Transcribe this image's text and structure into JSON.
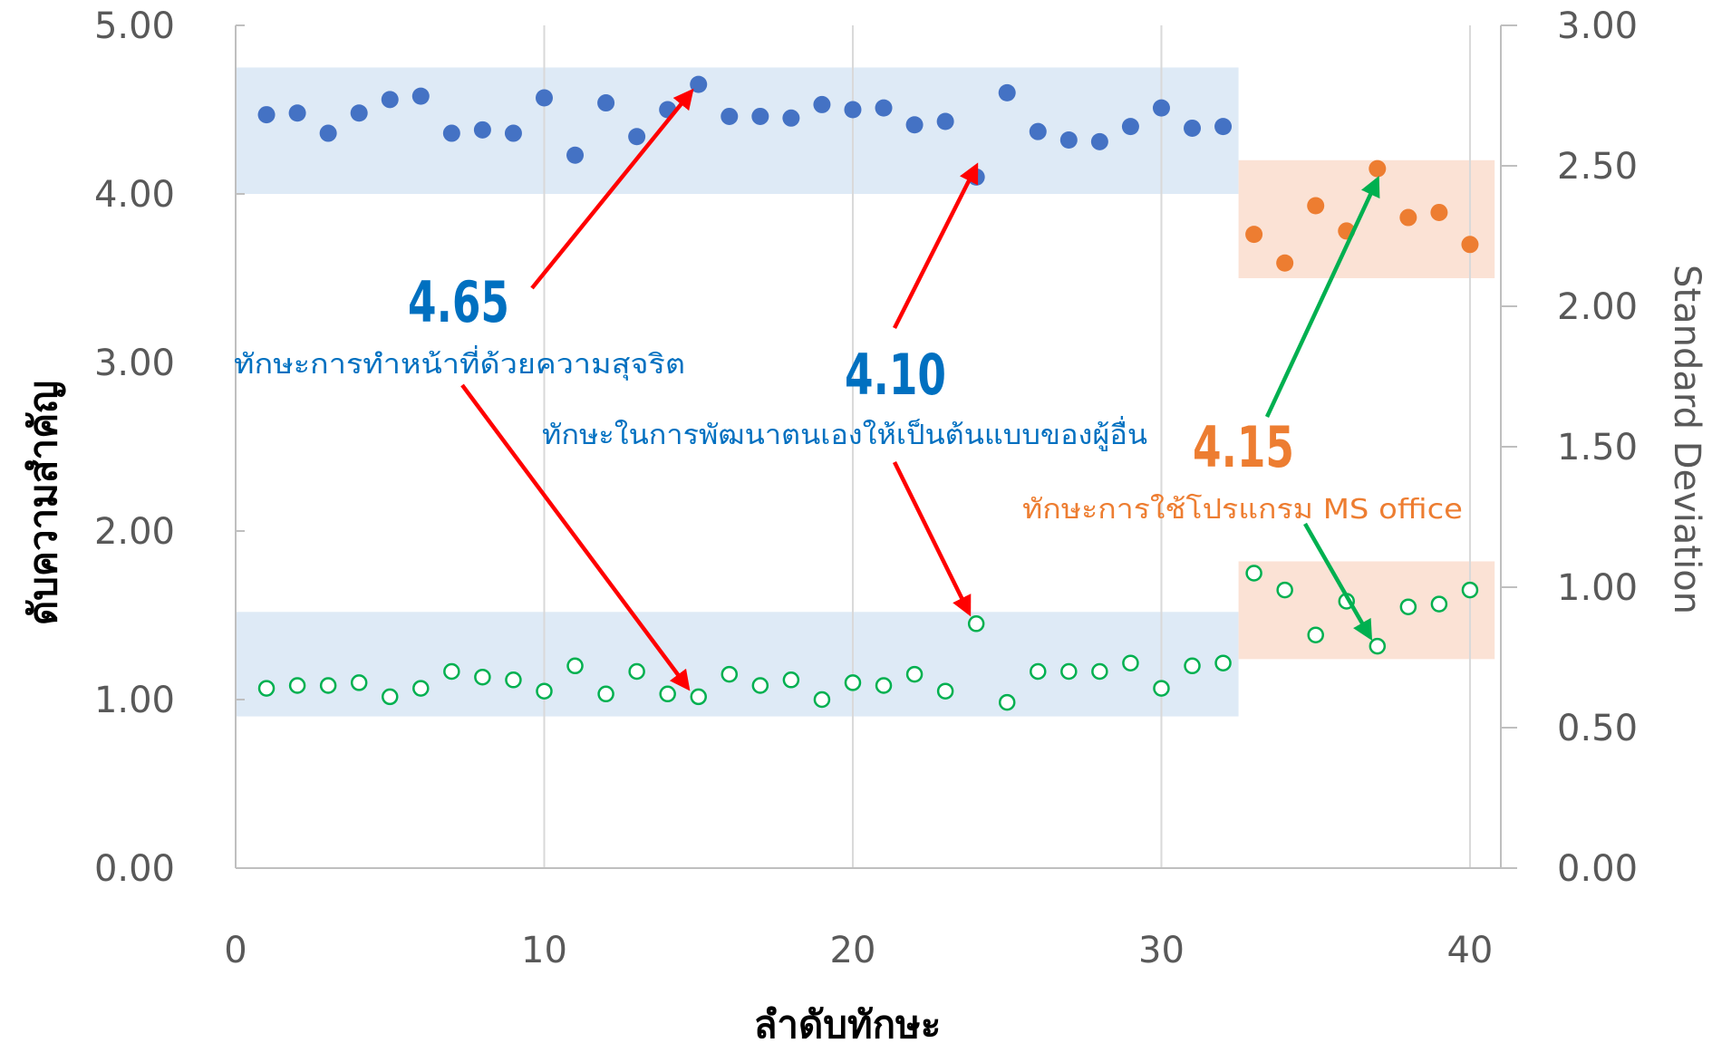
{
  "chart_data": {
    "type": "scatter",
    "xlabel": "ลำดับทักษะ",
    "ylabel": "ดับความสำคัญ",
    "y2label": "Standard Deviation",
    "xlim": [
      0,
      41
    ],
    "ylim": [
      0,
      5
    ],
    "y2lim": [
      0,
      3
    ],
    "xticks": [
      "0",
      "10",
      "20",
      "30",
      "40"
    ],
    "yticks": [
      "0.00",
      "1.00",
      "2.00",
      "3.00",
      "4.00",
      "5.00"
    ],
    "y2ticks": [
      "0.00",
      "0.50",
      "1.00",
      "1.50",
      "2.00",
      "2.50",
      "3.00"
    ],
    "grid": "vertical",
    "colors": {
      "blue": "#4472C4",
      "orange": "#ED7D31",
      "green": "#00B050",
      "band_blue": "#DEEAF6",
      "band_orange": "#FBE2D5",
      "arrow_red": "#FF0000",
      "arrow_green": "#00B050",
      "text_blue": "#0070C0",
      "text_orange": "#ED7D31"
    },
    "series": [
      {
        "axis": "left",
        "style": "filled",
        "color": "blue",
        "x": [
          1,
          2,
          3,
          4,
          5,
          6,
          7,
          8,
          9,
          10,
          11,
          12,
          13,
          14,
          15,
          16,
          17,
          18,
          19,
          20,
          21,
          22,
          23,
          24,
          25,
          26,
          27,
          28,
          29,
          30,
          31,
          32
        ],
        "values": [
          4.47,
          4.48,
          4.36,
          4.48,
          4.56,
          4.58,
          4.36,
          4.38,
          4.36,
          4.57,
          4.23,
          4.54,
          4.34,
          4.5,
          4.65,
          4.46,
          4.46,
          4.45,
          4.53,
          4.5,
          4.51,
          4.41,
          4.43,
          4.1,
          4.6,
          4.37,
          4.32,
          4.31,
          4.4,
          4.51,
          4.39,
          4.4
        ]
      },
      {
        "axis": "left",
        "style": "filled",
        "color": "orange",
        "x": [
          33,
          34,
          35,
          36,
          37,
          38,
          39,
          40
        ],
        "values": [
          3.76,
          3.59,
          3.93,
          3.78,
          4.15,
          3.86,
          3.89,
          3.7
        ]
      },
      {
        "axis": "right",
        "style": "hollow",
        "color": "green",
        "x": [
          1,
          2,
          3,
          4,
          5,
          6,
          7,
          8,
          9,
          10,
          11,
          12,
          13,
          14,
          15,
          16,
          17,
          18,
          19,
          20,
          21,
          22,
          23,
          24,
          25,
          26,
          27,
          28,
          29,
          30,
          31,
          32,
          33,
          34,
          35,
          36,
          37,
          38,
          39,
          40
        ],
        "values": [
          0.64,
          0.65,
          0.65,
          0.66,
          0.61,
          0.64,
          0.7,
          0.68,
          0.67,
          0.63,
          0.72,
          0.62,
          0.7,
          0.62,
          0.61,
          0.69,
          0.65,
          0.67,
          0.6,
          0.66,
          0.65,
          0.69,
          0.63,
          0.87,
          0.59,
          0.7,
          0.7,
          0.7,
          0.73,
          0.64,
          0.72,
          0.73,
          1.05,
          0.99,
          0.83,
          0.95,
          0.79,
          0.93,
          0.94,
          0.99
        ]
      }
    ],
    "bands": [
      {
        "color": "band_blue",
        "x": [
          0,
          32.5
        ],
        "y": [
          4.0,
          4.75
        ],
        "axis": "left"
      },
      {
        "color": "band_blue",
        "x": [
          0,
          32.5
        ],
        "y": [
          0.9,
          1.52
        ],
        "axis": "left"
      },
      {
        "color": "band_orange",
        "x": [
          32.5,
          40.8
        ],
        "y": [
          3.5,
          4.2
        ],
        "axis": "left"
      },
      {
        "color": "band_orange",
        "x": [
          32.5,
          40.8
        ],
        "y": [
          1.24,
          1.82
        ],
        "axis": "left"
      }
    ],
    "annotations": [
      {
        "value": "4.65",
        "label": "ทักษะการทำหน้าที่ด้วยความสุจริต",
        "color": "text_blue",
        "target_x": 15,
        "target_mean": 4.65,
        "target_sd": 0.61,
        "arrow": "arrow_red"
      },
      {
        "value": "4.10",
        "label": "ทักษะในการพัฒนาตนเองให้เป็นต้นแบบของผู้อื่น",
        "color": "text_blue",
        "target_x": 24,
        "target_mean": 4.1,
        "target_sd": 0.87,
        "arrow": "arrow_red"
      },
      {
        "value": "4.15",
        "label": "ทักษะการใช้โปรแกรม MS office",
        "color": "text_orange",
        "target_x": 37,
        "target_mean": 4.15,
        "target_sd": 0.79,
        "arrow": "arrow_green"
      }
    ]
  }
}
